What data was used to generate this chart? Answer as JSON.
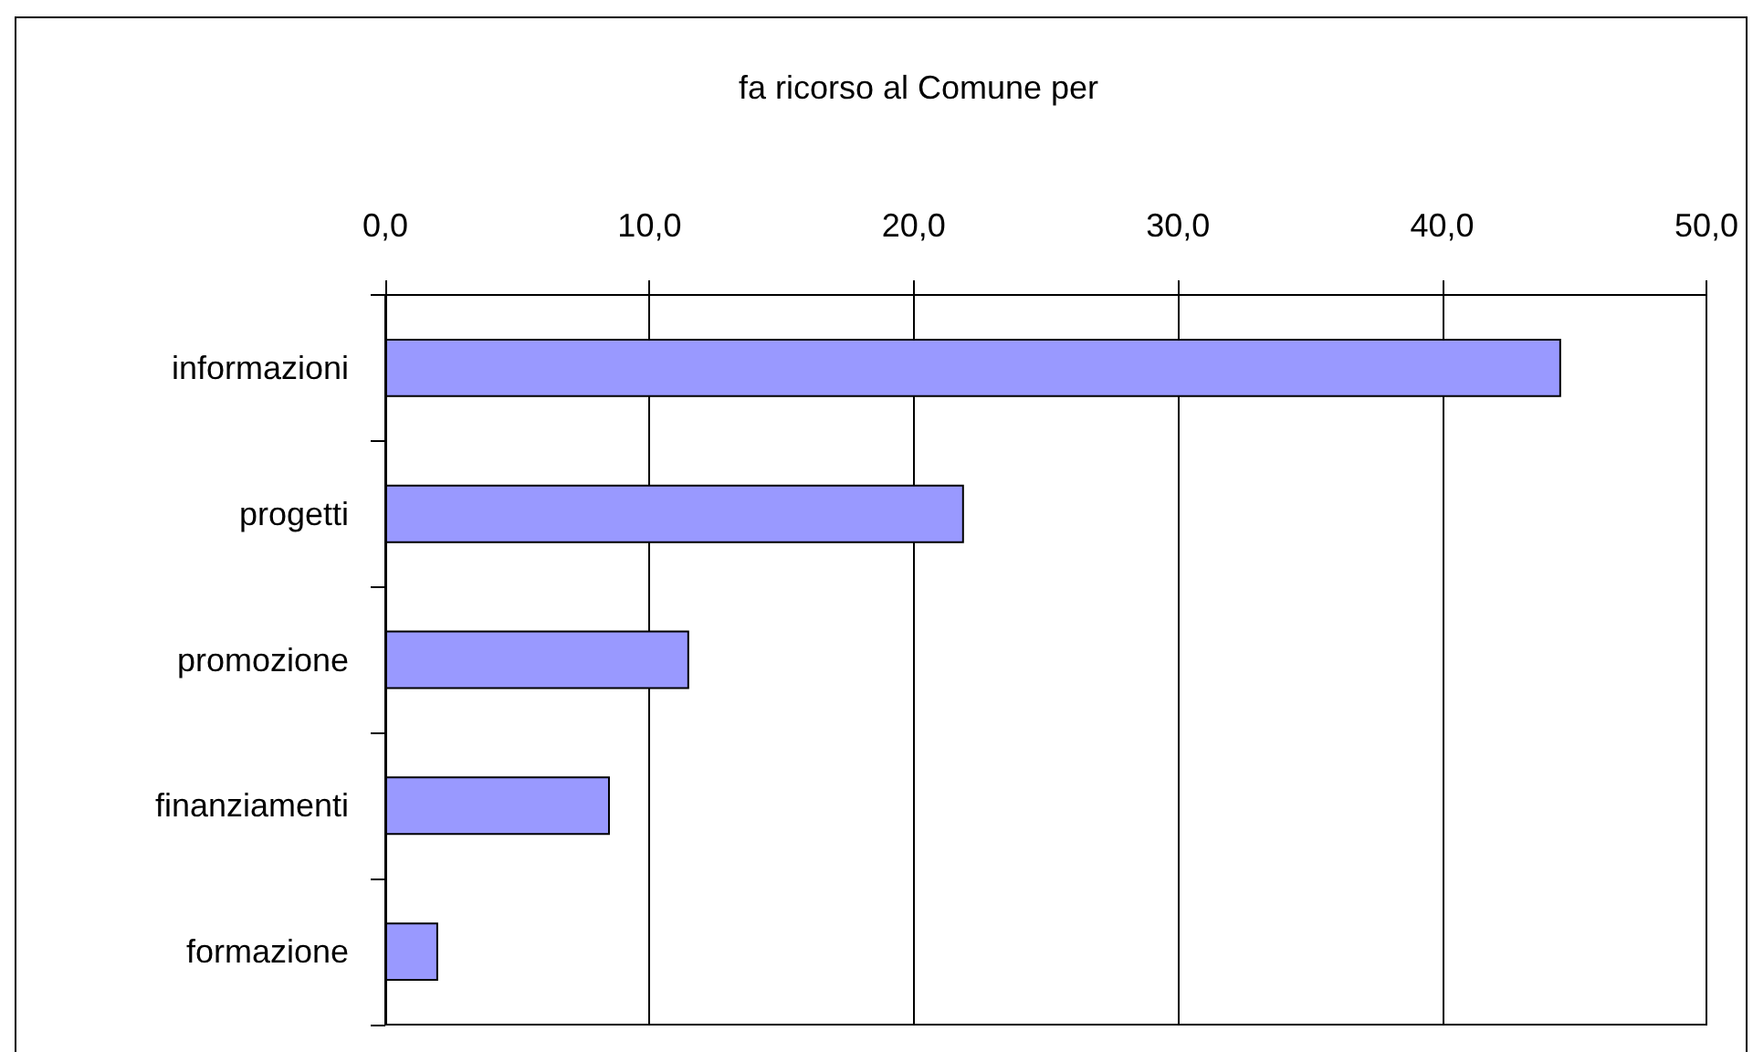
{
  "chart_data": {
    "type": "bar",
    "title": "fa ricorso al Comune per",
    "orientation": "horizontal",
    "categories": [
      "informazioni",
      "progetti",
      "promozione",
      "finanziamenti",
      "formazione"
    ],
    "values": [
      44.5,
      21.9,
      11.5,
      8.5,
      2.0
    ],
    "color": "#9999ff",
    "xlim": [
      0,
      50
    ],
    "xticks": [
      {
        "value": 0,
        "label": "0,0"
      },
      {
        "value": 10,
        "label": "10,0"
      },
      {
        "value": 20,
        "label": "20,0"
      },
      {
        "value": 30,
        "label": "30,0"
      },
      {
        "value": 40,
        "label": "40,0"
      },
      {
        "value": 50,
        "label": "50,0"
      }
    ],
    "grid": "x"
  }
}
